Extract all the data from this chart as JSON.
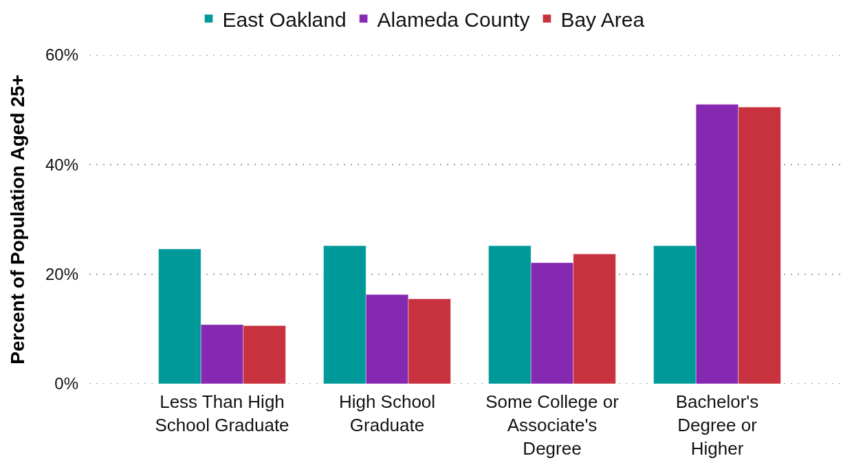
{
  "chart_data": {
    "type": "bar",
    "categories": [
      "Less Than High School Graduate",
      "High School Graduate",
      "Some College or Associate's Degree",
      "Bachelor's Degree or Higher"
    ],
    "series": [
      {
        "name": "East Oakland",
        "color": "#009999",
        "values": [
          24.6,
          25.2,
          25.2,
          25.2
        ]
      },
      {
        "name": "Alameda County",
        "color": "#8629b1",
        "values": [
          10.8,
          16.3,
          22.1,
          51.0
        ]
      },
      {
        "name": "Bay Area",
        "color": "#c8323e",
        "values": [
          10.6,
          15.5,
          23.7,
          50.5
        ]
      }
    ],
    "ylabel": "Percent of Population Aged 25+",
    "ylim": [
      0,
      60
    ],
    "yticks": [
      {
        "value": 0,
        "label": "0%"
      },
      {
        "value": 20,
        "label": "20%"
      },
      {
        "value": 40,
        "label": "40%"
      },
      {
        "value": 60,
        "label": "60%"
      }
    ],
    "grid": "y",
    "legend": "top"
  }
}
